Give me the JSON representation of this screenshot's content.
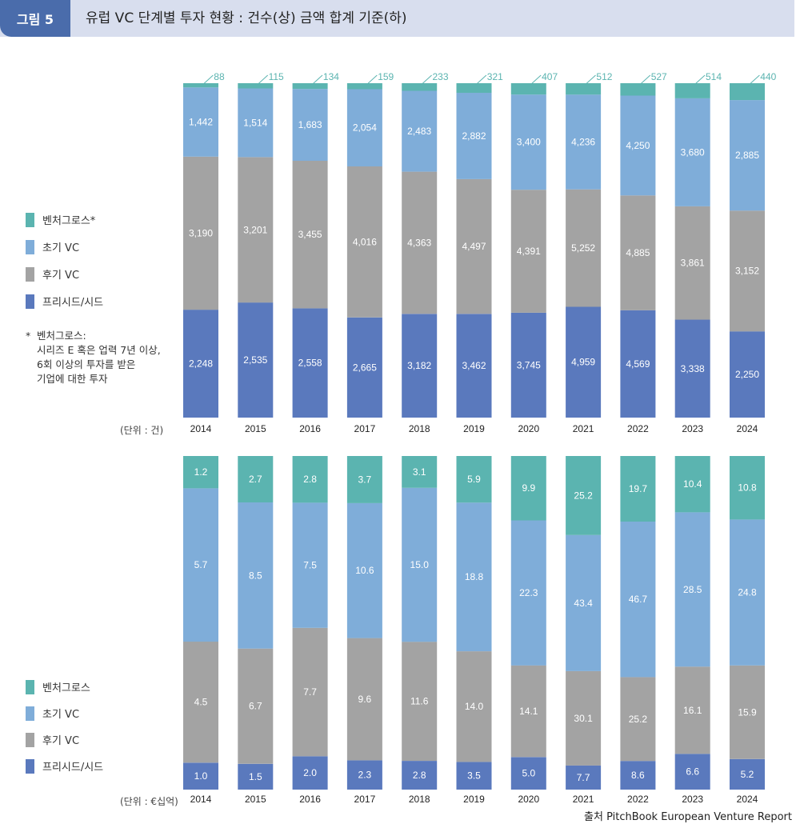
{
  "header": {
    "figure_label": "그림 5",
    "title": "유럽 VC 단계별 투자 현황 : 건수(상) 금액 합계 기준(하)"
  },
  "colors": {
    "venture_growth": "#5bb4b0",
    "early_vc": "#7fadd9",
    "late_vc": "#a3a3a3",
    "preseed_seed": "#5a79bd"
  },
  "legend_top": [
    "벤처그로스*",
    "초기 VC",
    "후기 VC",
    "프리시드/시드"
  ],
  "legend_bottom": [
    "벤처그로스",
    "초기 VC",
    "후기 VC",
    "프리시드/시드"
  ],
  "note": {
    "star": "*",
    "lines": [
      "벤처그로스:",
      "시리즈 E 혹은 업력 7년 이상,",
      "6회 이상의 투자를 받은",
      "기업에 대한 투자"
    ]
  },
  "unit_top": "(단위 : 건)",
  "unit_bottom": "(단위 : €십억)",
  "source": "출처 PitchBook European Venture Report",
  "chart_data": [
    {
      "type": "bar",
      "stacked": true,
      "normalized": true,
      "categories": [
        "2014",
        "2015",
        "2016",
        "2017",
        "2018",
        "2019",
        "2020",
        "2021",
        "2022",
        "2023",
        "2024"
      ],
      "series": [
        {
          "name": "프리시드/시드",
          "values": [
            2248,
            2535,
            2558,
            2665,
            3182,
            3462,
            3745,
            4959,
            4569,
            3338,
            2250
          ]
        },
        {
          "name": "후기 VC",
          "values": [
            3190,
            3201,
            3455,
            4016,
            4363,
            4497,
            4391,
            5252,
            4885,
            3861,
            3152
          ]
        },
        {
          "name": "초기 VC",
          "values": [
            1442,
            1514,
            1683,
            2054,
            2483,
            2882,
            3400,
            4236,
            4250,
            3680,
            2885
          ]
        },
        {
          "name": "벤처그로스*",
          "values": [
            88,
            115,
            134,
            159,
            233,
            321,
            407,
            512,
            527,
            514,
            440
          ]
        }
      ],
      "value_labels": {
        "preseed_seed": [
          "2,248",
          "2,535",
          "2,558",
          "2,665",
          "3,182",
          "3,462",
          "3,745",
          "4,959",
          "4,569",
          "3,338",
          "2,250"
        ],
        "late_vc": [
          "3,190",
          "3,201",
          "3,455",
          "4,016",
          "4,363",
          "4,497",
          "4,391",
          "5,252",
          "4,885",
          "3,861",
          "3,152"
        ],
        "early_vc": [
          "1,442",
          "1,514",
          "1,683",
          "2,054",
          "2,483",
          "2,882",
          "3,400",
          "4,236",
          "4,250",
          "3,680",
          "2,885"
        ],
        "venture_growth": [
          "88",
          "115",
          "134",
          "159",
          "233",
          "321",
          "407",
          "512",
          "527",
          "514",
          "440"
        ]
      }
    },
    {
      "type": "bar",
      "stacked": true,
      "normalized": true,
      "categories": [
        "2014",
        "2015",
        "2016",
        "2017",
        "2018",
        "2019",
        "2020",
        "2021",
        "2022",
        "2023",
        "2024"
      ],
      "series": [
        {
          "name": "프리시드/시드",
          "values": [
            1.0,
            1.5,
            2.0,
            2.3,
            2.8,
            3.5,
            5.0,
            7.7,
            8.6,
            6.6,
            5.2
          ]
        },
        {
          "name": "후기 VC",
          "values": [
            4.5,
            6.7,
            7.7,
            9.6,
            11.6,
            14.0,
            14.1,
            30.1,
            25.2,
            16.1,
            15.9
          ]
        },
        {
          "name": "초기 VC",
          "values": [
            5.7,
            8.5,
            7.5,
            10.6,
            15.0,
            18.8,
            22.3,
            43.4,
            46.7,
            28.5,
            24.8
          ]
        },
        {
          "name": "벤처그로스",
          "values": [
            1.2,
            2.7,
            2.8,
            3.7,
            3.1,
            5.9,
            9.9,
            25.2,
            19.7,
            10.4,
            10.8
          ]
        }
      ],
      "value_labels": {
        "preseed_seed": [
          "1.0",
          "1.5",
          "2.0",
          "2.3",
          "2.8",
          "3.5",
          "5.0",
          "7.7",
          "8.6",
          "6.6",
          "5.2"
        ],
        "late_vc": [
          "4.5",
          "6.7",
          "7.7",
          "9.6",
          "11.6",
          "14.0",
          "14.1",
          "30.1",
          "25.2",
          "16.1",
          "15.9"
        ],
        "early_vc": [
          "5.7",
          "8.5",
          "7.5",
          "10.6",
          "15.0",
          "18.8",
          "22.3",
          "43.4",
          "46.7",
          "28.5",
          "24.8"
        ],
        "venture_growth": [
          "1.2",
          "2.7",
          "2.8",
          "3.7",
          "3.1",
          "5.9",
          "9.9",
          "25.2",
          "19.7",
          "10.4",
          "10.8"
        ]
      }
    }
  ]
}
